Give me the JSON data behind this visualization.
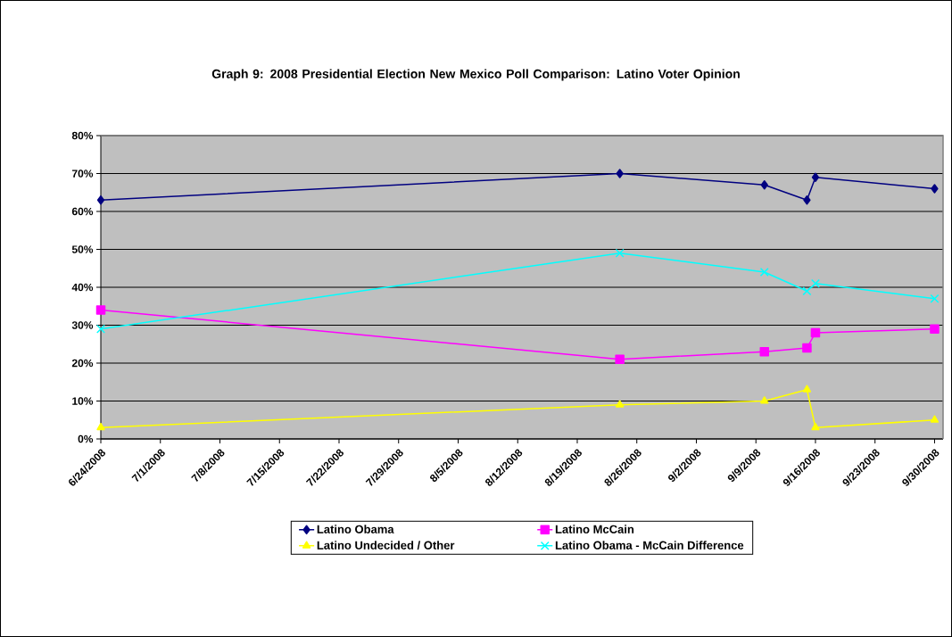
{
  "chart_data": {
    "type": "line",
    "title": "Graph 9: 2008 Presidential Election New Mexico Poll Comparison: Latino Voter Opinion",
    "x": [
      "2008-06-24",
      "2008-08-24",
      "2008-09-10",
      "2008-09-15",
      "2008-09-16",
      "2008-09-30"
    ],
    "series": [
      {
        "name": "Latino Obama",
        "color": "#000080",
        "marker": "diamond",
        "values": [
          63,
          70,
          67,
          63,
          69,
          66
        ]
      },
      {
        "name": "Latino McCain",
        "color": "#ff00ff",
        "marker": "square",
        "values": [
          34,
          21,
          23,
          24,
          28,
          29
        ]
      },
      {
        "name": "Latino Undecided / Other",
        "color": "#ffff00",
        "marker": "triangle",
        "values": [
          3,
          9,
          10,
          13,
          3,
          5
        ]
      },
      {
        "name": "Latino Obama - McCain Difference",
        "color": "#00ffff",
        "marker": "cross",
        "values": [
          29,
          49,
          44,
          39,
          41,
          37
        ]
      }
    ],
    "xlim": [
      "2008-06-24",
      "2008-10-01"
    ],
    "xticks": [
      {
        "value": "2008-06-24",
        "label": "6/24/2008"
      },
      {
        "value": "2008-07-01",
        "label": "7/1/2008"
      },
      {
        "value": "2008-07-08",
        "label": "7/8/2008"
      },
      {
        "value": "2008-07-15",
        "label": "7/15/2008"
      },
      {
        "value": "2008-07-22",
        "label": "7/22/2008"
      },
      {
        "value": "2008-07-29",
        "label": "7/29/2008"
      },
      {
        "value": "2008-08-05",
        "label": "8/5/2008"
      },
      {
        "value": "2008-08-12",
        "label": "8/12/2008"
      },
      {
        "value": "2008-08-19",
        "label": "8/19/2008"
      },
      {
        "value": "2008-08-26",
        "label": "8/26/2008"
      },
      {
        "value": "2008-09-02",
        "label": "9/2/2008"
      },
      {
        "value": "2008-09-09",
        "label": "9/9/2008"
      },
      {
        "value": "2008-09-16",
        "label": "9/16/2008"
      },
      {
        "value": "2008-09-23",
        "label": "9/23/2008"
      },
      {
        "value": "2008-09-30",
        "label": "9/30/2008"
      }
    ],
    "ylim": [
      0,
      80
    ],
    "yticks": [
      {
        "value": 0,
        "label": "0%"
      },
      {
        "value": 10,
        "label": "10%"
      },
      {
        "value": 20,
        "label": "20%"
      },
      {
        "value": 30,
        "label": "30%"
      },
      {
        "value": 40,
        "label": "40%"
      },
      {
        "value": 50,
        "label": "50%"
      },
      {
        "value": 60,
        "label": "60%"
      },
      {
        "value": 70,
        "label": "70%"
      },
      {
        "value": 80,
        "label": "80%"
      }
    ],
    "grid": "y",
    "legend": "bottom",
    "line_style": "solid"
  }
}
